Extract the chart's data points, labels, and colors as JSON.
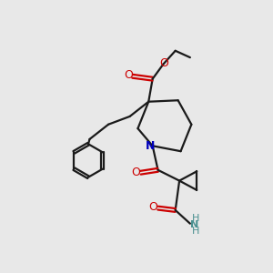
{
  "bg_color": "#e8e8e8",
  "bond_color": "#1a1a1a",
  "oxygen_color": "#cc0000",
  "nitrogen_color": "#0000bb",
  "nh2_color": "#4a9090",
  "figsize": [
    3.0,
    3.0
  ],
  "dpi": 100,
  "xlim": [
    0,
    10
  ],
  "ylim": [
    0,
    10
  ]
}
